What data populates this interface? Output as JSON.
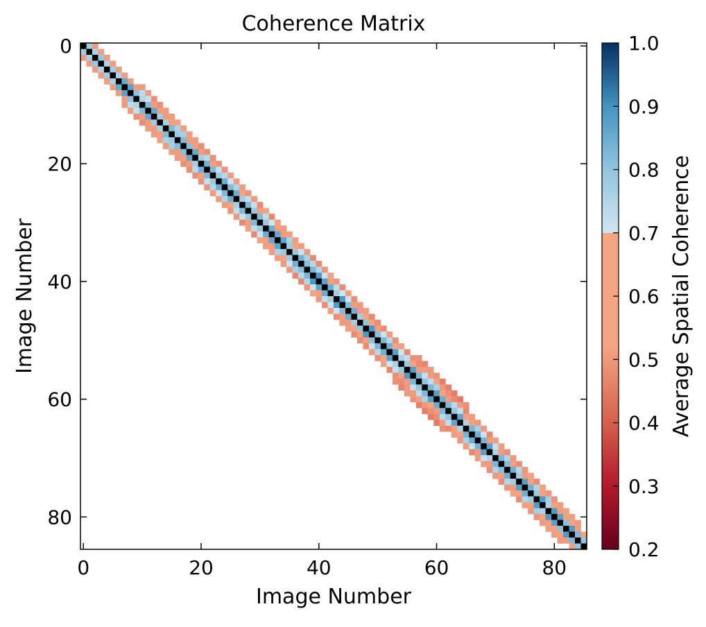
{
  "chart_data": {
    "type": "heatmap",
    "title": "Coherence Matrix",
    "xlabel": "Image Number",
    "ylabel": "Image Number",
    "n_images": 86,
    "x_ticks": [
      0,
      20,
      40,
      60,
      80
    ],
    "y_ticks": [
      0,
      20,
      40,
      60,
      80
    ],
    "xlim": [
      -0.5,
      85.5
    ],
    "ylim": [
      85.5,
      -0.5
    ],
    "grid": false,
    "colorbar": {
      "label": "Average Spatial Coherence",
      "min": 0.2,
      "max": 1.0,
      "ticks": [
        0.2,
        0.3,
        0.4,
        0.5,
        0.6,
        0.7,
        0.8,
        0.9,
        1.0
      ],
      "colormap": "RdBu",
      "position": "right"
    },
    "threshold": 0.5,
    "diagonal_value": 1.0,
    "mean_coherence_by_lag": [
      1.0,
      0.82,
      0.7,
      0.62,
      0.56
    ],
    "band_halfwidth_by_image": [
      2,
      2,
      2,
      2,
      2,
      2,
      2,
      2,
      2,
      2,
      3,
      3,
      3,
      3,
      3,
      3,
      3,
      3,
      3,
      3,
      3,
      3,
      3,
      3,
      3,
      3,
      3,
      3,
      3,
      3,
      3,
      3,
      2,
      2,
      2,
      3,
      3,
      3,
      3,
      3,
      3,
      3,
      3,
      3,
      3,
      3,
      3,
      3,
      3,
      3,
      3,
      3,
      3,
      3,
      3,
      2,
      3,
      4,
      4,
      4,
      4,
      4,
      3,
      3,
      3,
      3,
      2,
      3,
      3,
      3,
      3,
      3,
      3,
      3,
      3,
      3,
      3,
      3,
      3,
      3,
      3,
      3,
      2,
      2,
      2,
      2
    ],
    "colors": {
      "low": "#67001f",
      "mid_low": "#f4a582",
      "mid_high": "#d1e5f0",
      "high": "#053061"
    }
  }
}
